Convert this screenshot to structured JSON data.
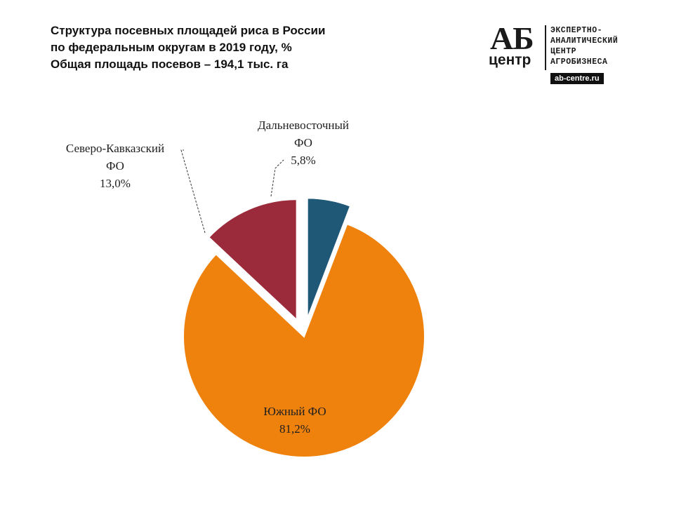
{
  "header": {
    "title_lines": [
      "Структура посевных площадей риса в России",
      "по федеральным округам в 2019 году, %",
      "Общая площадь посевов – 194,1 тыс. га"
    ]
  },
  "logo": {
    "mark_top": "АБ",
    "mark_bottom": "центр",
    "text_lines": [
      "ЭКСПЕРТНО-",
      "АНАЛИТИЧЕСКИЙ",
      "ЦЕНТР",
      "АГРОБИЗНЕСА"
    ],
    "url": "ab-centre.ru"
  },
  "chart_data": {
    "type": "pie",
    "title": "Структура посевных площадей риса в России по федеральным округам в 2019 году, %",
    "slices": [
      {
        "label_lines": [
          "Дальневосточный",
          "ФО"
        ],
        "value": 5.8,
        "value_text": "5,8%",
        "color": "#1f5777",
        "exploded": true
      },
      {
        "label_lines": [
          "Южный ФО"
        ],
        "value": 81.2,
        "value_text": "81,2%",
        "color": "#ef820d",
        "exploded": false
      },
      {
        "label_lines": [
          "Северо-Кавказский",
          "ФО"
        ],
        "value": 13.0,
        "value_text": "13,0%",
        "color": "#9b2a3b",
        "exploded": true
      }
    ]
  }
}
